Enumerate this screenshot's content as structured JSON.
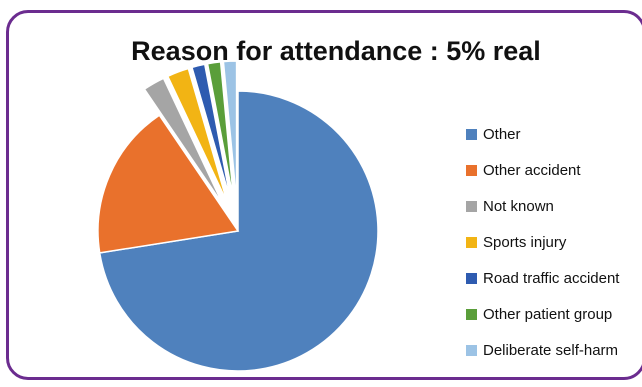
{
  "chart_data": {
    "type": "pie",
    "title": "Reason for attendance : 5% real",
    "legend_position": "right",
    "start_angle_deg": 0,
    "direction": "clockwise-from-top",
    "slices": [
      {
        "label": "Other",
        "value": 72.5,
        "color": "#4f81bd"
      },
      {
        "label": "Other accident",
        "value": 18.0,
        "color": "#e9712c"
      },
      {
        "label": "Not known",
        "value": 2.5,
        "color": "#a5a5a5"
      },
      {
        "label": "Sports injury",
        "value": 2.5,
        "color": "#f2b414"
      },
      {
        "label": "Road traffic accident",
        "value": 1.5,
        "color": "#2e5bb0"
      },
      {
        "label": "Other patient group",
        "value": 1.5,
        "color": "#5a9e3a"
      },
      {
        "label": "Deliberate self-harm",
        "value": 1.5,
        "color": "#9cc3e5"
      }
    ],
    "exploded": [
      "Not known",
      "Sports injury",
      "Road traffic accident",
      "Other patient group",
      "Deliberate self-harm"
    ]
  }
}
